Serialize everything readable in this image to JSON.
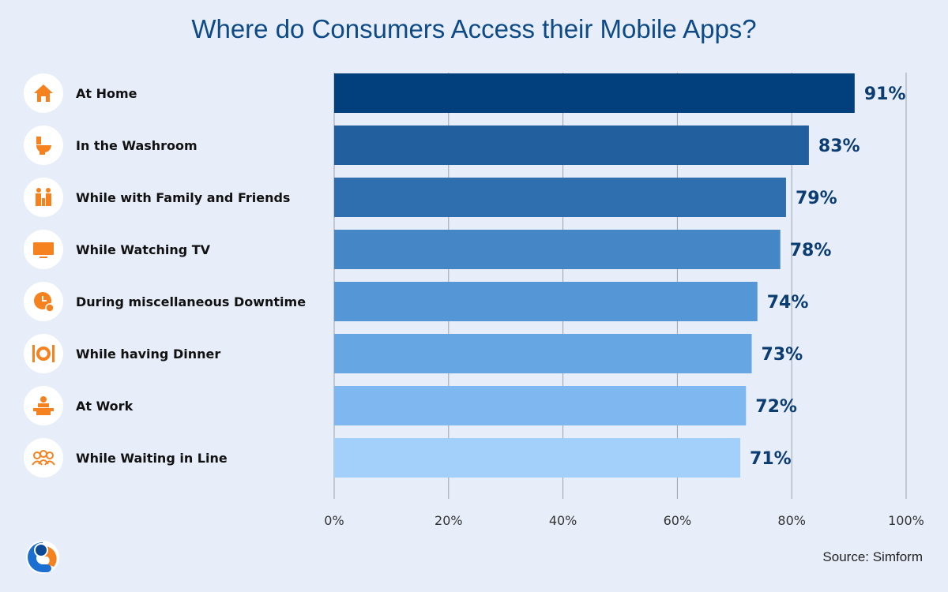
{
  "chart_data": {
    "type": "bar",
    "orientation": "horizontal",
    "title": "Where do Consumers Access their Mobile Apps?",
    "categories": [
      "At Home",
      "In the Washroom",
      "While with Family and Friends",
      "While Watching TV",
      "During miscellaneous Downtime",
      "While having Dinner",
      "At Work",
      "While Waiting in Line"
    ],
    "values": [
      91,
      83,
      79,
      78,
      74,
      73,
      72,
      71
    ],
    "value_labels": [
      "91%",
      "83%",
      "79%",
      "78%",
      "74%",
      "73%",
      "72%",
      "71%"
    ],
    "icons": [
      "home-icon",
      "toilet-icon",
      "family-icon",
      "tv-icon",
      "clock-icon",
      "dinner-icon",
      "work-desk-icon",
      "queue-icon"
    ],
    "bar_colors": [
      "#023f7d",
      "#225f9e",
      "#2f6fb0",
      "#4486c6",
      "#5496d6",
      "#66a6e3",
      "#7fb8f0",
      "#a3d0fb"
    ],
    "xlim": [
      0,
      100
    ],
    "xticks": [
      0,
      20,
      40,
      60,
      80,
      100
    ],
    "xtick_labels": [
      "0%",
      "20%",
      "40%",
      "60%",
      "80%",
      "100%"
    ],
    "grid": true,
    "icon_color": "#f5821f"
  },
  "source": {
    "label": "Source: ",
    "name": "Simform"
  }
}
